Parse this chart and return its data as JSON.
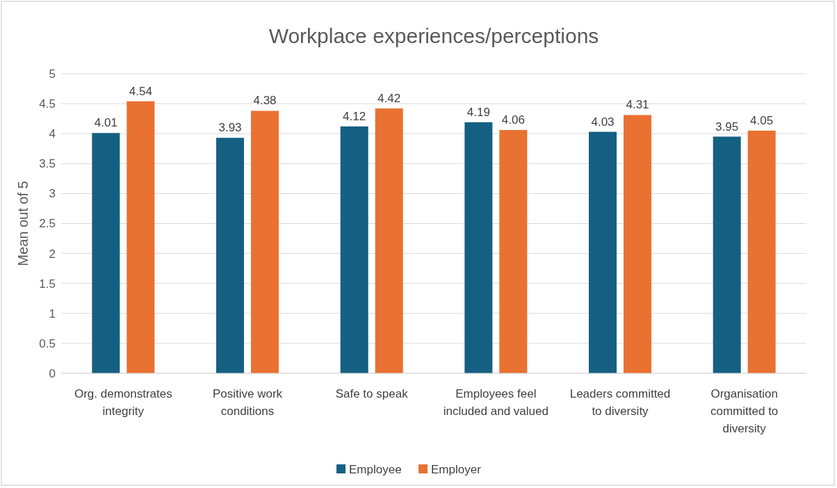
{
  "chart_data": {
    "type": "bar",
    "title": "Workplace experiences/perceptions",
    "ylabel": "Mean out of 5",
    "categories": [
      "Org. demonstrates integrity",
      "Positive work conditions",
      "Safe to speak",
      "Employees feel included and valued",
      "Leaders committed to diversity",
      "Organisation committed to diversity"
    ],
    "series": [
      {
        "name": "Employee",
        "color": "#156082",
        "values": [
          4.01,
          3.93,
          4.12,
          4.19,
          4.03,
          3.95
        ]
      },
      {
        "name": "Employer",
        "color": "#e97132",
        "values": [
          4.54,
          4.38,
          4.42,
          4.06,
          4.31,
          4.05
        ]
      }
    ],
    "ylim": [
      0,
      5
    ],
    "yticks": [
      0,
      0.5,
      1,
      1.5,
      2,
      2.5,
      3,
      3.5,
      4,
      4.5,
      5
    ],
    "grid": "y",
    "legend": "bottom",
    "data_labels": true
  }
}
